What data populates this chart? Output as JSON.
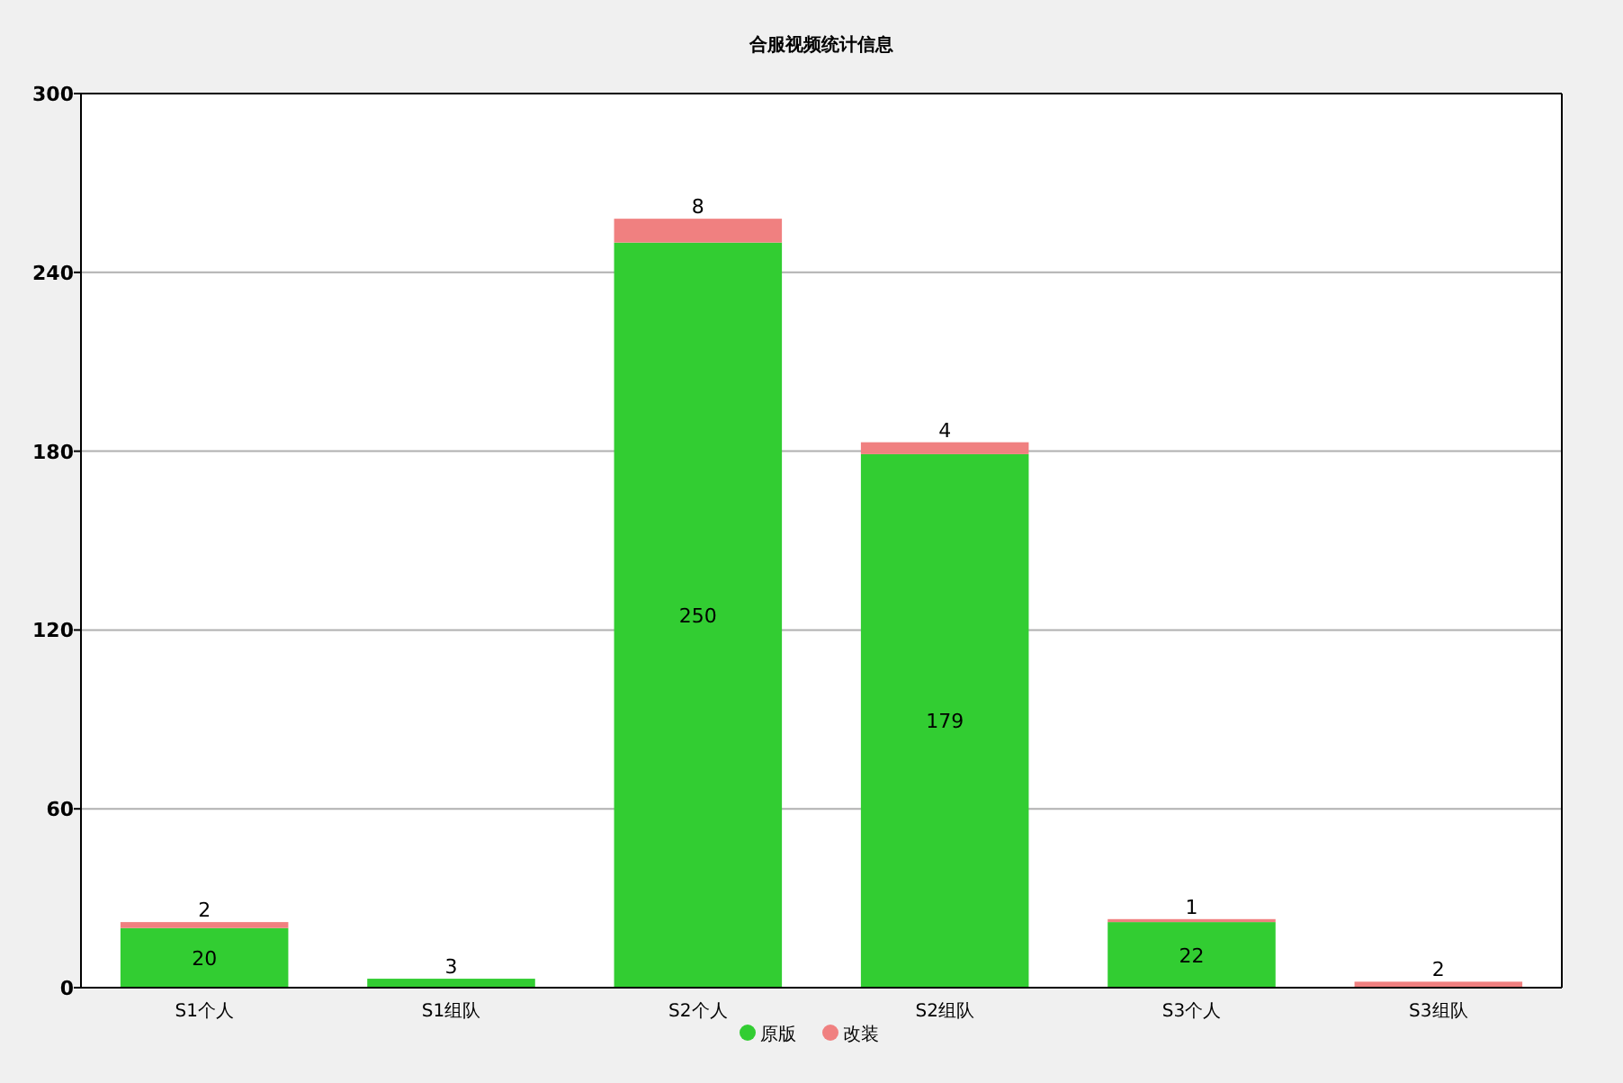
{
  "chart_data": {
    "type": "bar",
    "title": "合服视频统计信息",
    "stacked": true,
    "categories": [
      "S1个人",
      "S1组队",
      "S2个人",
      "S2组队",
      "S3个人",
      "S3组队"
    ],
    "series": [
      {
        "name": "原版",
        "color": "#32cd32",
        "values": [
          20,
          3,
          250,
          179,
          22,
          0
        ],
        "value_labels": [
          "20",
          "3",
          "250",
          "179",
          "22",
          null
        ]
      },
      {
        "name": "改装",
        "color": "#f08080",
        "values": [
          2,
          0,
          8,
          4,
          1,
          2
        ],
        "value_labels": [
          "2",
          null,
          "8",
          "4",
          "1",
          "2"
        ]
      }
    ],
    "ylim": [
      0,
      300
    ],
    "yticks": [
      0,
      60,
      120,
      180,
      240,
      300
    ],
    "grid": "y",
    "legend": "bottom"
  }
}
